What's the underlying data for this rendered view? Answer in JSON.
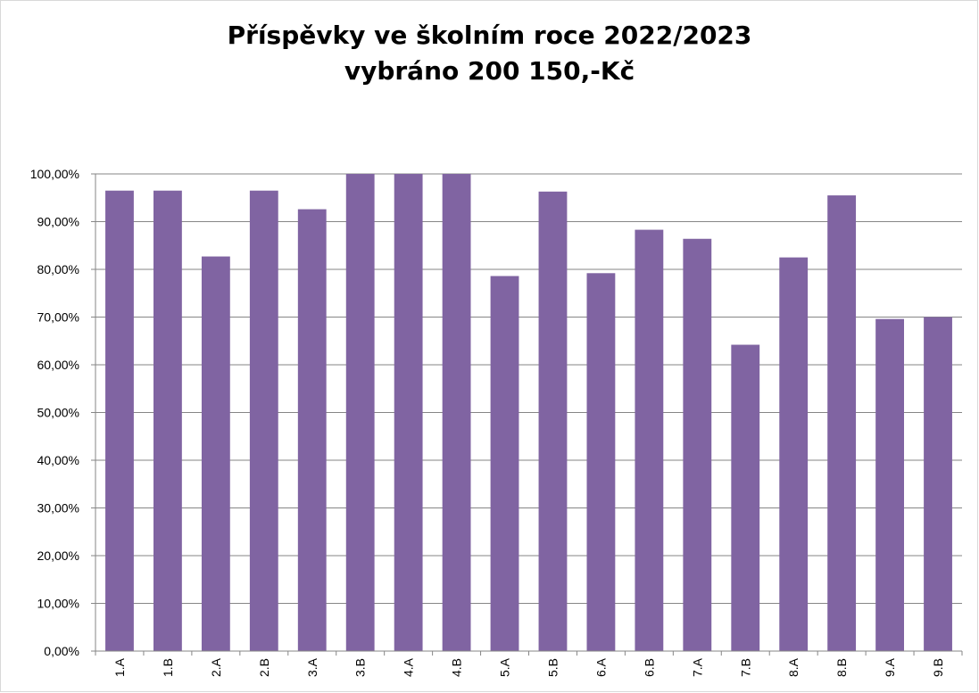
{
  "chart_data": {
    "type": "bar",
    "title": "Příspěvky ve školním roce 2022/2023",
    "subtitle": "vybráno 200 150,-Kč",
    "xlabel": "",
    "ylabel": "",
    "categories": [
      "1.A",
      "1.B",
      "2.A",
      "2.B",
      "3.A",
      "3.B",
      "4.A",
      "4.B",
      "5.A",
      "5.B",
      "6.A",
      "6.B",
      "7.A",
      "7.B",
      "8.A",
      "8.B",
      "9.A",
      "9.B"
    ],
    "values": [
      96.5,
      96.5,
      82.7,
      96.5,
      92.6,
      100,
      100,
      100,
      78.6,
      96.3,
      79.2,
      88.3,
      86.4,
      64.2,
      82.5,
      95.5,
      69.6,
      70.0
    ],
    "ylim": [
      0,
      100
    ],
    "y_ticks": [
      "0,00%",
      "10,00%",
      "20,00%",
      "30,00%",
      "40,00%",
      "50,00%",
      "60,00%",
      "70,00%",
      "80,00%",
      "90,00%",
      "100,00%"
    ],
    "grid": true,
    "legend": "none",
    "bar_color": "#8064a2",
    "grid_color": "#868686"
  }
}
